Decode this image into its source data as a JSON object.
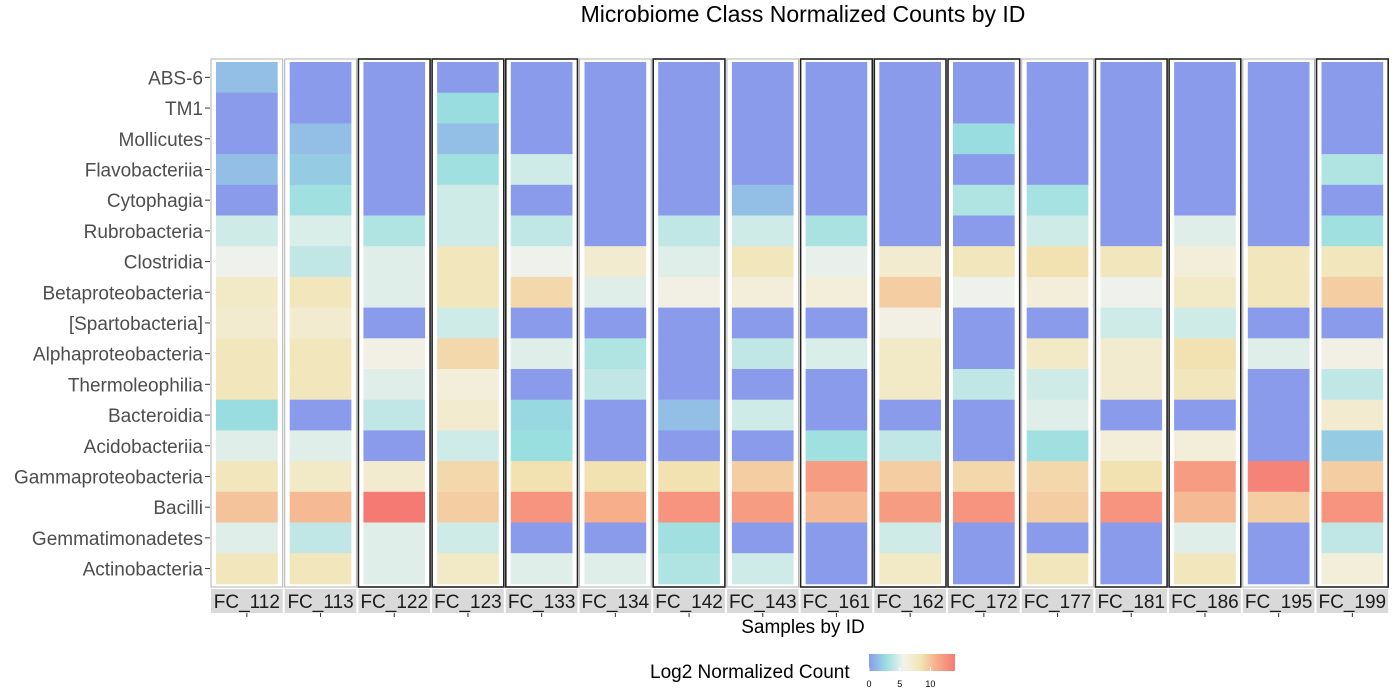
{
  "chart_data": {
    "type": "heatmap",
    "title": "Microbiome Class Normalized Counts by ID",
    "xlabel": "Samples by ID",
    "ylabel": "",
    "samples": [
      "FC_112",
      "FC_113",
      "FC_122",
      "FC_123",
      "FC_133",
      "FC_134",
      "FC_142",
      "FC_143",
      "FC_161",
      "FC_162",
      "FC_172",
      "FC_177",
      "FC_181",
      "FC_186",
      "FC_195",
      "FC_199"
    ],
    "classes": [
      "ABS-6",
      "TM1",
      "Mollicutes",
      "Flavobacteriia",
      "Cytophagia",
      "Rubrobacteria",
      "Clostridia",
      "Betaproteobacteria",
      "[Spartobacteria]",
      "Alphaproteobacteria",
      "Thermoleophilia",
      "Bacteroidia",
      "Acidobacteriia",
      "Gammaproteobacteria",
      "Bacilli",
      "Gemmatimonadetes",
      "Actinobacteria"
    ],
    "values": [
      [
        1.5,
        0,
        0,
        0,
        0,
        0,
        0,
        0,
        0,
        0,
        0,
        0,
        0,
        0,
        0,
        0
      ],
      [
        0,
        0,
        0,
        2.7,
        0,
        0,
        0,
        0,
        0,
        0,
        0,
        0,
        0,
        0,
        0,
        0
      ],
      [
        0,
        1.5,
        0,
        1.5,
        0,
        0,
        0,
        0,
        0,
        0,
        2.7,
        0,
        0,
        0,
        0,
        0
      ],
      [
        1.5,
        2,
        0,
        3,
        4.5,
        0,
        0,
        0,
        0,
        0,
        0,
        0,
        0,
        0,
        0,
        3.5
      ],
      [
        0,
        3,
        0,
        4.5,
        0,
        0,
        0,
        1.5,
        0,
        0,
        3.5,
        3.2,
        0,
        0,
        0,
        0
      ],
      [
        4.5,
        4.8,
        3.5,
        4.5,
        4,
        0,
        4,
        4.5,
        3.3,
        0,
        0,
        4.5,
        0,
        5,
        0,
        3
      ],
      [
        5.5,
        4,
        5,
        8,
        5.5,
        7,
        5,
        8,
        5.3,
        7,
        8,
        8.5,
        8,
        6.5,
        8,
        8
      ],
      [
        7.5,
        8,
        5,
        8,
        9,
        5,
        6,
        6.5,
        6.5,
        9.5,
        5.5,
        6.5,
        5.5,
        7.5,
        8,
        9.5
      ],
      [
        7,
        7,
        0,
        4.5,
        0,
        0,
        0,
        0,
        0,
        6,
        0,
        0,
        4.5,
        4.5,
        0,
        0
      ],
      [
        8,
        8,
        6,
        9,
        5,
        3.5,
        0,
        4,
        4.8,
        7.5,
        0,
        7.5,
        7,
        8.5,
        5,
        6
      ],
      [
        8,
        8,
        5,
        6.5,
        0,
        4,
        0,
        0,
        0,
        7.5,
        4,
        4.5,
        7,
        8,
        0,
        4
      ],
      [
        2.7,
        0,
        4,
        7,
        2.5,
        0,
        1.5,
        4.5,
        0,
        0,
        0,
        5,
        0,
        0,
        0,
        7
      ],
      [
        5,
        5,
        0,
        4.5,
        2.8,
        0,
        0,
        0,
        3,
        4,
        0,
        3,
        6.5,
        6.5,
        0,
        2
      ],
      [
        8,
        7.5,
        7,
        9,
        8.5,
        8.5,
        8.5,
        9.5,
        12,
        9.5,
        9,
        9,
        8.5,
        12,
        13.5,
        9.5
      ],
      [
        10,
        10.5,
        14,
        9.5,
        12.5,
        11,
        12.5,
        12,
        10.5,
        12,
        12.5,
        9.5,
        12.5,
        10.5,
        9.5,
        12.5
      ],
      [
        5,
        4,
        5,
        4.5,
        0,
        0,
        3,
        0,
        0,
        4.5,
        0,
        0,
        0,
        5,
        0,
        4
      ],
      [
        8,
        8,
        5,
        7.5,
        5,
        5,
        3.5,
        4.5,
        0,
        7.5,
        0,
        8,
        0,
        8,
        0,
        6.5
      ]
    ],
    "legend": {
      "title": "Log2 Normalized Count",
      "ticks": [
        0,
        5,
        10
      ],
      "range": [
        0,
        14
      ],
      "colors": [
        "#8a9bec",
        "#9adfe0",
        "#f2f2ec",
        "#f2e4b4",
        "#f6aa88",
        "#f67a74"
      ]
    },
    "outlined_panels": [
      "FC_122",
      "FC_123",
      "FC_133",
      "FC_142",
      "FC_161",
      "FC_162",
      "FC_172",
      "FC_181",
      "FC_186",
      "FC_199"
    ]
  }
}
